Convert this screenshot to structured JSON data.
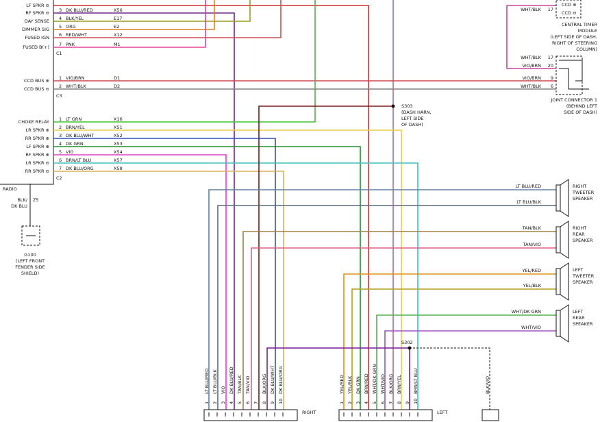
{
  "radio": {
    "label": "RADIO",
    "c1": {
      "name": "C1",
      "rows": [
        {
          "function": "LF SPKR ⊖"
        },
        {
          "function": "RF SPKR ⊖",
          "pin": "3",
          "wire": "DK BLU/RED",
          "circuit": "X56"
        },
        {
          "function": "DAY SENSE",
          "pin": "4",
          "wire": "BLK/YEL",
          "circuit": "E17"
        },
        {
          "function": "DIMMER SIG",
          "pin": "5",
          "wire": "ORG",
          "circuit": "E2"
        },
        {
          "function": "FUSED IGN",
          "pin": "6",
          "wire": "RED/WHT",
          "circuit": "X12"
        },
        {
          "function": "FUSED B(+)",
          "pin": "7",
          "wire": "PNK",
          "circuit": "M1"
        }
      ]
    },
    "c3": {
      "name": "C3",
      "rows": [
        {
          "function": "CCD BUS ⊕",
          "pin": "1",
          "wire": "VIO/BRN",
          "circuit": "D1"
        },
        {
          "function": "CCD BUS ⊖",
          "pin": "2",
          "wire": "WHT/BLK",
          "circuit": "D2"
        }
      ]
    },
    "c2": {
      "name": "C2",
      "rows": [
        {
          "function": "CHOKE RELAY",
          "pin": "1",
          "wire": "LT GRN",
          "circuit": "X16"
        },
        {
          "function": "LR SPKR ⊕",
          "pin": "2",
          "wire": "BRN/YEL",
          "circuit": "X51"
        },
        {
          "function": "RR SPKR ⊕",
          "pin": "3",
          "wire": "DK BLU/WHT",
          "circuit": "X52"
        },
        {
          "function": "LF SPKR ⊕",
          "pin": "4",
          "wire": "DK GRN",
          "circuit": "X53"
        },
        {
          "function": "RF SPKR ⊕",
          "pin": "5",
          "wire": "VIO",
          "circuit": "X54"
        },
        {
          "function": "LR SPKR ⊖",
          "pin": "6",
          "wire": "BRN/LT BLU",
          "circuit": "X57"
        },
        {
          "function": "RR SPKR ⊖",
          "pin": "7",
          "wire": "DK BLU/ORG",
          "circuit": "X58"
        }
      ]
    },
    "ground": {
      "wire_lines": [
        "BLK/",
        "DK BLU"
      ],
      "circuit": "Z5",
      "name": "G100",
      "location_lines": [
        "(LEFT FRONT",
        "FENDER SIDE",
        "SHIELD)"
      ]
    }
  },
  "central_timer": {
    "pins": [
      "CCD ⊕",
      "CCD ⊖"
    ],
    "wire": "WHT/BLK",
    "pin": "17",
    "name_lines": [
      "CENTRAL TIMER",
      "MODULE",
      "(LEFT SIDE OF DASH,",
      "RIGHT OF STEERING",
      "COLUMN)"
    ]
  },
  "joint_connector": {
    "rows": [
      {
        "wire": "WHT/BLK",
        "pin": "17"
      },
      {
        "wire": "VIO/BRN",
        "pin": "20"
      },
      {
        "wire": "VIO/BRN",
        "pin": "9"
      },
      {
        "wire": "WHT/BLK",
        "pin": "6"
      }
    ],
    "name_lines": [
      "JOINT CONNECTOR 1",
      "(BEHIND LEFT",
      "SIDE OF DASH)"
    ]
  },
  "s303": {
    "name": "S303",
    "lines": [
      "(DASH HARN,",
      "LEFT SIDE",
      "OF DASH)"
    ]
  },
  "s302": {
    "name": "S302"
  },
  "speakers": [
    {
      "wires": [
        "LT BLU/RED",
        "LT BLU/BLK"
      ],
      "name_lines": [
        "RIGHT",
        "TWEETER",
        "SPEAKER"
      ]
    },
    {
      "wires": [
        "TAN/BLK",
        "TAN/VIO"
      ],
      "name_lines": [
        "RIGHT",
        "REAR",
        "SPEAKER"
      ]
    },
    {
      "wires": [
        "YEL/RED",
        "YEL/BLK"
      ],
      "name_lines": [
        "LEFT",
        "TWEETER",
        "SPEAKER"
      ]
    },
    {
      "wires": [
        "WHT/DK GRN",
        "WHT/VIO"
      ],
      "name_lines": [
        "LEFT",
        "REAR",
        "SPEAKER"
      ]
    }
  ],
  "right_front": {
    "title": "RIGHT",
    "pins": [
      {
        "pin": "1",
        "wire": "LT BLU/RED"
      },
      {
        "pin": "2",
        "wire": "LT BLU/BLK"
      },
      {
        "pin": "3",
        "wire": "VIO"
      },
      {
        "pin": "4",
        "wire": "DK BLU/RED"
      },
      {
        "pin": "5",
        "wire": "TAN/BLK"
      },
      {
        "pin": "6",
        "wire": "TAN/VIO"
      },
      {
        "pin": "7"
      },
      {
        "pin": "8",
        "wire": "BLK/ORG"
      },
      {
        "pin": "9",
        "wire": "DK BLU/WHT"
      },
      {
        "pin": "10",
        "wire": "DK BLU/ORG"
      }
    ]
  },
  "left_front": {
    "title": "LEFT",
    "pins": [
      {
        "pin": "1",
        "wire": "YEL/RED"
      },
      {
        "pin": "2",
        "wire": "YEL/BLK"
      },
      {
        "pin": "3",
        "wire": "DK GRN"
      },
      {
        "pin": "4",
        "wire": "BRN/RED"
      },
      {
        "pin": "5",
        "wire": "WHT/DK GRN"
      },
      {
        "pin": "6",
        "wire": "WHT/VIO"
      },
      {
        "pin": "7",
        "wire": "BLK/ORG"
      },
      {
        "pin": "8",
        "wire": "BRN/YEL"
      },
      {
        "pin": "9"
      },
      {
        "pin": "10",
        "wire": "BRN/LT BLU"
      }
    ],
    "ground_wire": "BLK/VIO"
  }
}
